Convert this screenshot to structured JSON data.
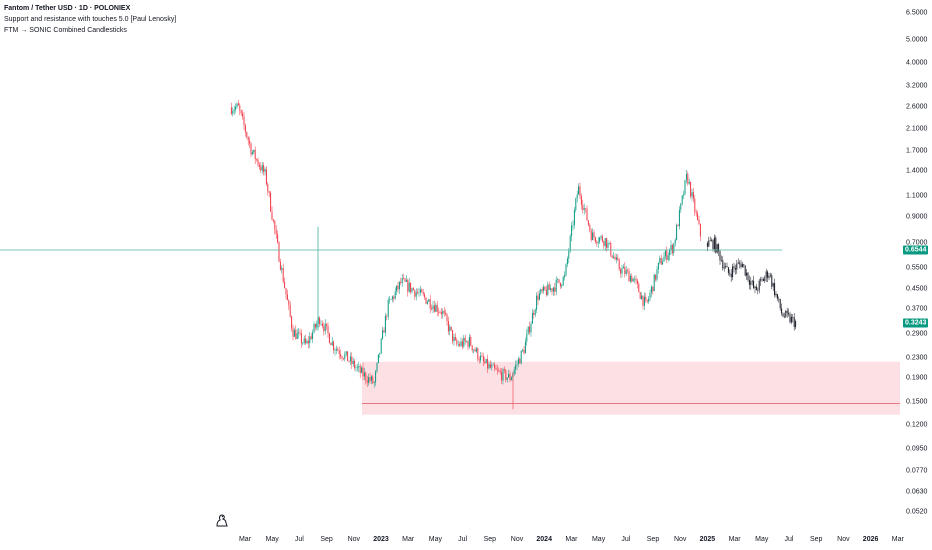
{
  "legend": {
    "symbol": "Fantom / Tether USD · 1D · POLONIEX",
    "indicator_1": "Support and resistance with touches 5.0 [Paul Lenosky]",
    "indicator_2": "FTM → SONIC Combined Candlesticks"
  },
  "price_axis": {
    "labels": [
      "6.5000",
      "5.0000",
      "4.0000",
      "3.2000",
      "2.6000",
      "2.1000",
      "1.7000",
      "1.4000",
      "1.1000",
      "0.9000",
      "0.7000",
      "0.5500",
      "0.4500",
      "0.3700",
      "0.2900",
      "0.2300",
      "0.1900",
      "0.1500",
      "0.1200",
      "0.0950",
      "0.0770",
      "0.0630",
      "0.0520"
    ],
    "badges": [
      {
        "value": "0.6544",
        "color": "#089981"
      },
      {
        "value": "0.3243",
        "color": "#089981"
      }
    ]
  },
  "time_axis": {
    "labels": [
      {
        "text": "Mar",
        "year": false
      },
      {
        "text": "May",
        "year": false
      },
      {
        "text": "Jul",
        "year": false
      },
      {
        "text": "Sep",
        "year": false
      },
      {
        "text": "Nov",
        "year": false
      },
      {
        "text": "2023",
        "year": true
      },
      {
        "text": "Mar",
        "year": false
      },
      {
        "text": "May",
        "year": false
      },
      {
        "text": "Jul",
        "year": false
      },
      {
        "text": "Sep",
        "year": false
      },
      {
        "text": "Nov",
        "year": false
      },
      {
        "text": "2024",
        "year": true
      },
      {
        "text": "Mar",
        "year": false
      },
      {
        "text": "May",
        "year": false
      },
      {
        "text": "Jul",
        "year": false
      },
      {
        "text": "Sep",
        "year": false
      },
      {
        "text": "Nov",
        "year": false
      },
      {
        "text": "2025",
        "year": true
      },
      {
        "text": "Mar",
        "year": false
      },
      {
        "text": "May",
        "year": false
      },
      {
        "text": "Jul",
        "year": false
      },
      {
        "text": "Sep",
        "year": false
      },
      {
        "text": "Nov",
        "year": false
      },
      {
        "text": "2026",
        "year": true
      },
      {
        "text": "Mar",
        "year": false
      }
    ]
  },
  "levels": {
    "resistance": 0.6544,
    "support": 0.148,
    "zone_top": 0.222,
    "zone_bottom": 0.133
  },
  "colors": {
    "up": "#089981",
    "down": "#f23645",
    "sonic": "#131722",
    "resistance_line": "#4fb3a0",
    "support_line": "#e05563",
    "zone_fill": "#fde0e4"
  },
  "chart_data": {
    "type": "candlestick",
    "scale": "log",
    "ylim": [
      0.048,
      7.0
    ],
    "series": [
      {
        "name": "FTM → SONIC Combined Candlesticks",
        "segment": "FTM",
        "x": [
          "2022-02",
          "2022-03",
          "2022-04",
          "2022-05",
          "2022-06",
          "2022-07",
          "2022-08",
          "2022-09",
          "2022-10",
          "2022-11",
          "2022-12",
          "2023-01",
          "2023-02",
          "2023-03",
          "2023-04",
          "2023-05",
          "2023-06",
          "2023-07",
          "2023-08",
          "2023-09",
          "2023-10",
          "2023-11",
          "2023-12",
          "2024-01",
          "2024-02",
          "2024-03",
          "2024-04",
          "2024-05",
          "2024-06",
          "2024-07",
          "2024-08",
          "2024-09",
          "2024-10",
          "2024-11",
          "2024-12"
        ],
        "close": [
          2.6,
          1.7,
          1.35,
          0.62,
          0.3,
          0.26,
          0.34,
          0.26,
          0.23,
          0.2,
          0.18,
          0.38,
          0.48,
          0.44,
          0.4,
          0.36,
          0.26,
          0.27,
          0.22,
          0.2,
          0.19,
          0.25,
          0.42,
          0.45,
          0.5,
          1.2,
          0.75,
          0.72,
          0.55,
          0.5,
          0.38,
          0.58,
          0.68,
          1.35,
          0.75
        ]
      },
      {
        "name": "FTM → SONIC Combined Candlesticks",
        "segment": "SONIC",
        "x": [
          "2025-01",
          "2025-02",
          "2025-03",
          "2025-04",
          "2025-05",
          "2025-06",
          "2025-07"
        ],
        "close": [
          0.7,
          0.52,
          0.58,
          0.44,
          0.53,
          0.35,
          0.3243
        ]
      }
    ]
  }
}
